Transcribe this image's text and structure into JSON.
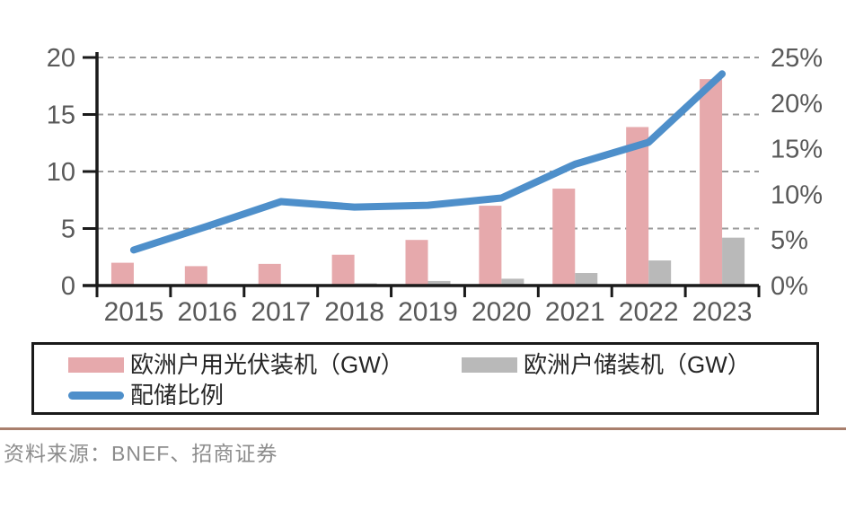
{
  "chart_data": {
    "type": "bar",
    "note": "combo chart: two bar series on left axis (GW) + one line series on right axis (%)",
    "categories": [
      "2015",
      "2016",
      "2017",
      "2018",
      "2019",
      "2020",
      "2021",
      "2022",
      "2023"
    ],
    "series": [
      {
        "name": "欧洲户用光伏装机（GW）",
        "type": "bar",
        "axis": "left",
        "color": "#e6a9ac",
        "values": [
          2.0,
          1.7,
          1.9,
          2.7,
          4.0,
          7.0,
          8.5,
          13.9,
          18.1
        ]
      },
      {
        "name": "欧洲户储装机（GW）",
        "type": "bar",
        "axis": "left",
        "color": "#b9b9b9",
        "values": [
          0.05,
          0.05,
          0.1,
          0.2,
          0.4,
          0.6,
          1.1,
          2.2,
          4.2
        ]
      },
      {
        "name": "配储比例",
        "type": "line",
        "axis": "right",
        "color": "#4e8fca",
        "values_percent": [
          3.9,
          6.5,
          9.2,
          8.6,
          8.8,
          9.6,
          13.3,
          15.7,
          23.2
        ]
      }
    ],
    "left_axis": {
      "ticks": [
        0,
        5,
        10,
        15,
        20
      ],
      "range": [
        0,
        20
      ],
      "label_suffix": ""
    },
    "right_axis": {
      "ticks": [
        0,
        5,
        10,
        15,
        20,
        25
      ],
      "range": [
        0,
        25
      ],
      "label_suffix": "%"
    },
    "grid": "horizontal dashed gridlines at left-axis ticks",
    "legend_position": "boxed legend below plot",
    "title": "",
    "xlabel": "",
    "ylabel": ""
  },
  "colors": {
    "pv_bar": "#e6a9ac",
    "storage_bar": "#b9b9b9",
    "ratio_line": "#4e8fca",
    "axis": "#1a1a1a",
    "gridline": "#9b9b9b",
    "tick_text": "#595959",
    "divider": "#a97f6d",
    "source_text": "#8c8c8c"
  },
  "source": {
    "text": "资料来源：BNEF、招商证券"
  }
}
